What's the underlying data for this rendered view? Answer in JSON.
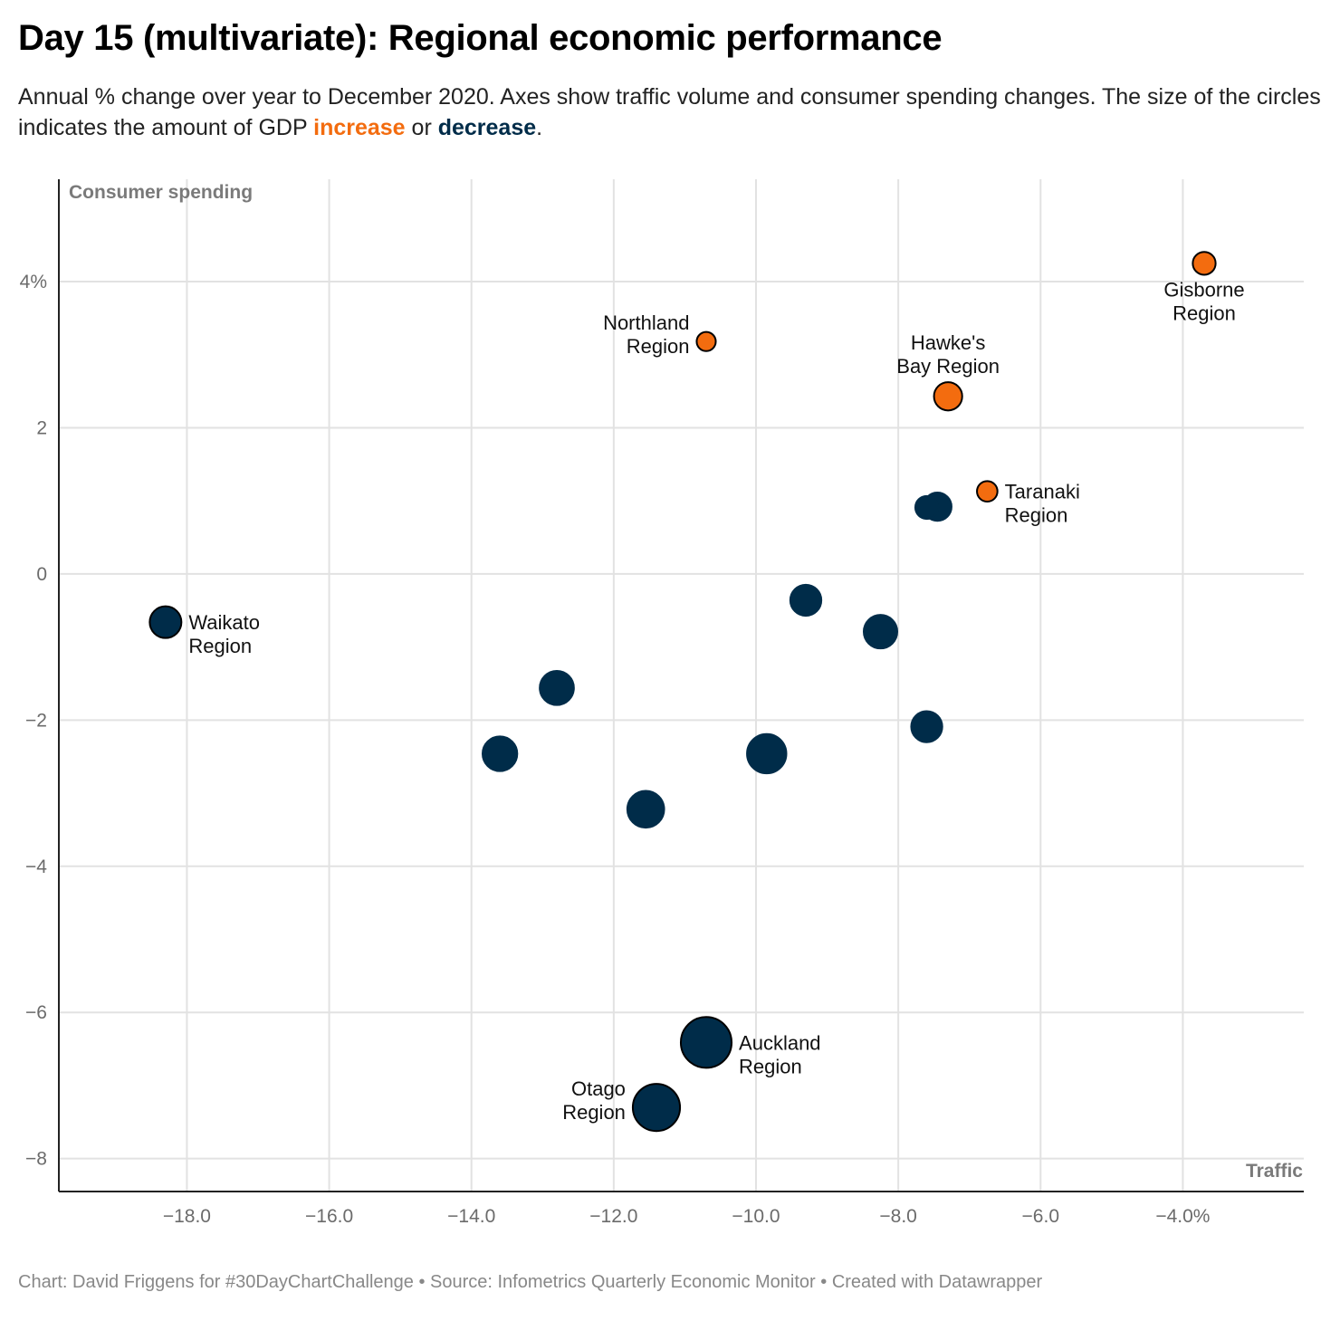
{
  "title": "Day 15 (multivariate): Regional economic performance",
  "subtitle": {
    "text_before": "Annual % change over year to December 2020. Axes show traffic volume and consumer spending changes. The size of the circles indicates the amount of GDP ",
    "increase_word": "increase",
    "middle": " or ",
    "decrease_word": "decrease",
    "end": "."
  },
  "footer": "Chart: David Friggens for #30DayChartChallenge • Source: Infometrics Quarterly Economic Monitor • Created with Datawrapper",
  "colors": {
    "increase": "#f36c0f",
    "decrease": "#002c49",
    "grid": "#e2e2e2",
    "axis": "#222222"
  },
  "chart_data": {
    "type": "scatter",
    "xlabel": "Traffic",
    "ylabel": "Consumer spending",
    "xlim": [
      -19.8,
      -2.3
    ],
    "ylim": [
      -8.45,
      5.4
    ],
    "x_ticks": [
      {
        "value": -18,
        "label": "−18.0"
      },
      {
        "value": -16,
        "label": "−16.0"
      },
      {
        "value": -14,
        "label": "−14.0"
      },
      {
        "value": -12,
        "label": "−12.0"
      },
      {
        "value": -10,
        "label": "−10.0"
      },
      {
        "value": -8,
        "label": "−8.0"
      },
      {
        "value": -6,
        "label": "−6.0"
      },
      {
        "value": -4,
        "label": "−4.0%"
      }
    ],
    "y_ticks": [
      {
        "value": 4,
        "label": "4%"
      },
      {
        "value": 2,
        "label": "2"
      },
      {
        "value": 0,
        "label": "0"
      },
      {
        "value": -2,
        "label": "−2"
      },
      {
        "value": -4,
        "label": "−4"
      },
      {
        "value": -6,
        "label": "−6"
      },
      {
        "value": -8,
        "label": "−8"
      }
    ],
    "grid": true,
    "points": [
      {
        "name": "Gisborne Region",
        "label_lines": [
          "Gisborne",
          "Region"
        ],
        "label_pos": "below",
        "x": -3.7,
        "y": 4.25,
        "gdp": 0.6,
        "group": "increase"
      },
      {
        "name": "Northland Region",
        "label_lines": [
          "Northland",
          "Region"
        ],
        "label_pos": "left",
        "x": -10.7,
        "y": 3.18,
        "gdp": 0.3,
        "group": "increase"
      },
      {
        "name": "Hawke's Bay Region",
        "label_lines": [
          "Hawke's",
          "Bay Region"
        ],
        "label_pos": "above",
        "x": -7.3,
        "y": 2.43,
        "gdp": 1.2,
        "group": "increase"
      },
      {
        "name": "Taranaki Region",
        "label_lines": [
          "Taranaki",
          "Region"
        ],
        "label_pos": "right",
        "x": -6.75,
        "y": 1.13,
        "gdp": 0.4,
        "group": "increase"
      },
      {
        "name": "",
        "label_lines": [],
        "label_pos": "none",
        "x": -7.6,
        "y": 0.91,
        "gdp": 0.6,
        "group": "decrease"
      },
      {
        "name": "",
        "label_lines": [],
        "label_pos": "none",
        "x": -7.45,
        "y": 0.92,
        "gdp": 1.2,
        "group": "decrease"
      },
      {
        "name": "",
        "label_lines": [],
        "label_pos": "none",
        "x": -9.3,
        "y": -0.36,
        "gdp": 1.6,
        "group": "decrease"
      },
      {
        "name": "",
        "label_lines": [],
        "label_pos": "none",
        "x": -8.25,
        "y": -0.79,
        "gdp": 2.0,
        "group": "decrease"
      },
      {
        "name": "Waikato Region",
        "label_lines": [
          "Waikato",
          "Region"
        ],
        "label_pos": "right",
        "x": -18.3,
        "y": -0.66,
        "gdp": 1.7,
        "group": "decrease"
      },
      {
        "name": "",
        "label_lines": [],
        "label_pos": "none",
        "x": -12.8,
        "y": -1.56,
        "gdp": 2.1,
        "group": "decrease"
      },
      {
        "name": "",
        "label_lines": [],
        "label_pos": "none",
        "x": -7.6,
        "y": -2.09,
        "gdp": 1.6,
        "group": "decrease"
      },
      {
        "name": "",
        "label_lines": [],
        "label_pos": "none",
        "x": -13.6,
        "y": -2.46,
        "gdp": 2.2,
        "group": "decrease"
      },
      {
        "name": "",
        "label_lines": [],
        "label_pos": "none",
        "x": -9.85,
        "y": -2.46,
        "gdp": 3.1,
        "group": "decrease"
      },
      {
        "name": "",
        "label_lines": [],
        "label_pos": "none",
        "x": -11.55,
        "y": -3.22,
        "gdp": 2.6,
        "group": "decrease"
      },
      {
        "name": "Auckland Region",
        "label_lines": [
          "Auckland",
          "Region"
        ],
        "label_pos": "right",
        "x": -10.7,
        "y": -6.41,
        "gdp": 6.0,
        "group": "decrease"
      },
      {
        "name": "Otago Region",
        "label_lines": [
          "Otago",
          "Region"
        ],
        "label_pos": "left",
        "x": -11.4,
        "y": -7.3,
        "gdp": 5.0,
        "group": "decrease"
      }
    ]
  }
}
